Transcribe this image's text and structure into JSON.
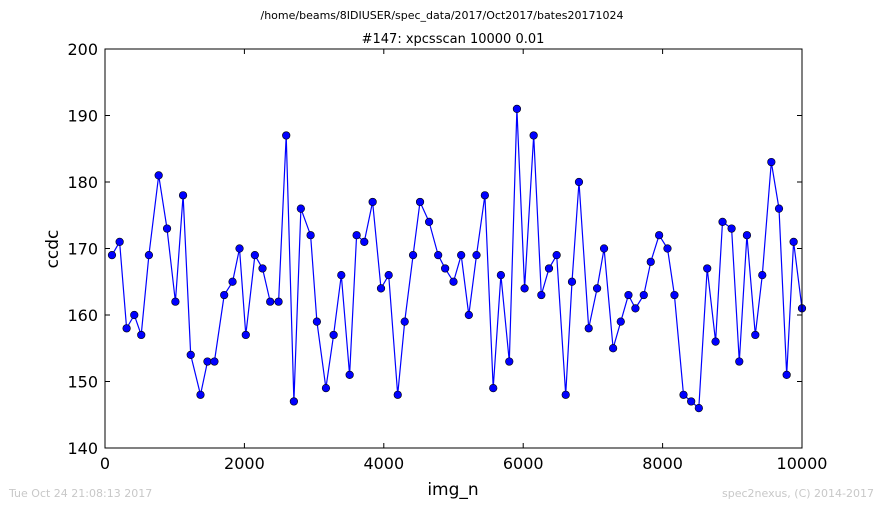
{
  "header": {
    "path": "/home/beams/8IDIUSER/spec_data/2017/Oct2017/bates20171024"
  },
  "footer": {
    "timestamp": "Tue Oct 24 21:08:13 2017",
    "credit": "spec2nexus, (C) 2014-2017"
  },
  "colors": {
    "series": "#0000ff",
    "axes": "#000000",
    "footer": "#c8c8c8"
  },
  "chart_data": {
    "type": "line",
    "title": "#147: xpcsscan 10000 0.01",
    "xlabel": "img_n",
    "ylabel": "ccdc",
    "xlim": [
      0,
      10000
    ],
    "ylim": [
      140,
      200
    ],
    "xticks": [
      0,
      2000,
      4000,
      6000,
      8000,
      10000
    ],
    "yticks": [
      140,
      150,
      160,
      170,
      180,
      190,
      200
    ],
    "xtick_labels": [
      "0",
      "2000",
      "4000",
      "6000",
      "8000",
      "10000"
    ],
    "ytick_labels": [
      "140",
      "150",
      "160",
      "170",
      "180",
      "190",
      "200"
    ],
    "grid": false,
    "marker": "circle",
    "series": [
      {
        "x": [
          100,
          210,
          310,
          420,
          520,
          630,
          770,
          890,
          1010,
          1120,
          1230,
          1370,
          1470,
          1570,
          1710,
          1830,
          1930,
          2020,
          2150,
          2260,
          2370,
          2490,
          2600,
          2710,
          2810,
          2950,
          3040,
          3170,
          3280,
          3390,
          3510,
          3610,
          3720,
          3840,
          3960,
          4070,
          4200,
          4300,
          4420,
          4520,
          4650,
          4780,
          4880,
          5000,
          5110,
          5220,
          5330,
          5450,
          5570,
          5680,
          5800,
          5910,
          6020,
          6150,
          6260,
          6370,
          6480,
          6610,
          6700,
          6800,
          6940,
          7060,
          7160,
          7290,
          7400,
          7510,
          7610,
          7730,
          7830,
          7950,
          8070,
          8170,
          8300,
          8410,
          8520,
          8640,
          8760,
          8860,
          8990,
          9100,
          9210,
          9330,
          9430,
          9560,
          9670,
          9780,
          9880,
          10000
        ],
        "y": [
          169,
          171,
          158,
          160,
          157,
          169,
          181,
          173,
          162,
          178,
          154,
          148,
          153,
          153,
          163,
          165,
          170,
          157,
          169,
          167,
          162,
          162,
          187,
          147,
          176,
          172,
          159,
          149,
          157,
          166,
          151,
          172,
          171,
          177,
          164,
          166,
          148,
          159,
          169,
          177,
          174,
          169,
          167,
          165,
          169,
          160,
          169,
          178,
          149,
          166,
          153,
          191,
          164,
          187,
          163,
          167,
          169,
          148,
          165,
          180,
          158,
          164,
          170,
          155,
          159,
          163,
          161,
          163,
          168,
          172,
          170,
          163,
          148,
          147,
          146,
          167,
          156,
          174,
          173,
          153,
          172,
          157,
          166,
          183,
          176,
          151,
          171,
          161
        ]
      }
    ]
  }
}
